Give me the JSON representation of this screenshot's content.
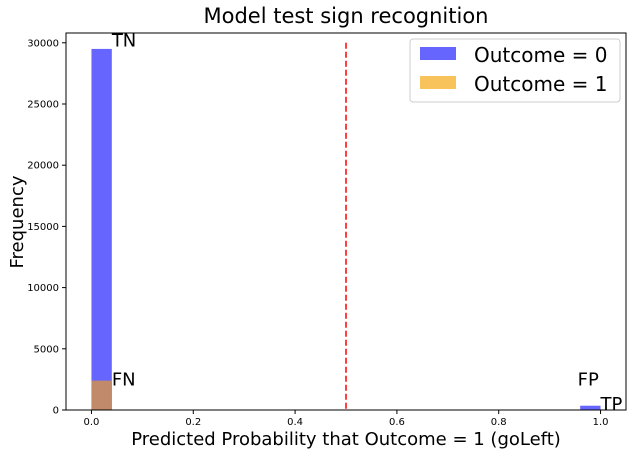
{
  "chart_data": {
    "type": "bar",
    "title": "Model test sign recognition",
    "xlabel": "Predicted Probability that Outcome = 1 (goLeft)",
    "ylabel": "Frequency",
    "xlim": [
      -0.05,
      1.05
    ],
    "ylim": [
      0,
      30800
    ],
    "xticks": [
      "0.0",
      "0.2",
      "0.4",
      "0.6",
      "0.8",
      "1.0"
    ],
    "yticks": [
      "0",
      "5000",
      "10000",
      "15000",
      "20000",
      "25000",
      "30000"
    ],
    "bin_width": 0.04,
    "threshold": 0.5,
    "threshold_color": "#ff0000",
    "series": [
      {
        "name": "Outcome = 0",
        "color": "#6666ff",
        "bins": [
          {
            "x0": 0.0,
            "x1": 0.04,
            "value": 29500
          },
          {
            "x0": 0.96,
            "x1": 1.0,
            "value": 350
          }
        ]
      },
      {
        "name": "Outcome = 1",
        "color": "#f8c35b",
        "bins": [
          {
            "x0": 0.0,
            "x1": 0.04,
            "value": 2400
          },
          {
            "x0": 0.96,
            "x1": 1.0,
            "value": 20
          }
        ]
      }
    ],
    "overlap_color": "#c08a6b",
    "annotations": [
      {
        "text": "TN",
        "x": 0.04,
        "y": 29700
      },
      {
        "text": "FN",
        "x": 0.04,
        "y": 2000
      },
      {
        "text": "FP",
        "x": 0.955,
        "y": 2000
      },
      {
        "text": "TP",
        "x": 1.0,
        "y": 0
      }
    ],
    "legend_position": "top-right",
    "grid": false
  }
}
